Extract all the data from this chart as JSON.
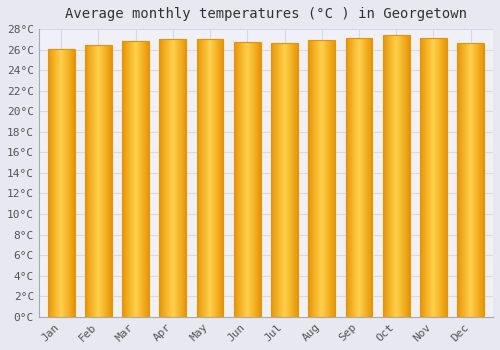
{
  "title": "Average monthly temperatures (°C ) in Georgetown",
  "months": [
    "Jan",
    "Feb",
    "Mar",
    "Apr",
    "May",
    "Jun",
    "Jul",
    "Aug",
    "Sep",
    "Oct",
    "Nov",
    "Dec"
  ],
  "temperatures": [
    26.1,
    26.4,
    26.8,
    27.0,
    27.0,
    26.7,
    26.6,
    26.9,
    27.1,
    27.4,
    27.1,
    26.6
  ],
  "bar_color_center": "#FFD04C",
  "bar_color_edge": "#E89400",
  "background_color": "#e8e8f0",
  "plot_bg_color": "#f0f0f8",
  "grid_color": "#d8d8e8",
  "ylim": [
    0,
    28
  ],
  "ytick_step": 2,
  "title_fontsize": 10,
  "tick_fontsize": 8,
  "font_family": "monospace"
}
